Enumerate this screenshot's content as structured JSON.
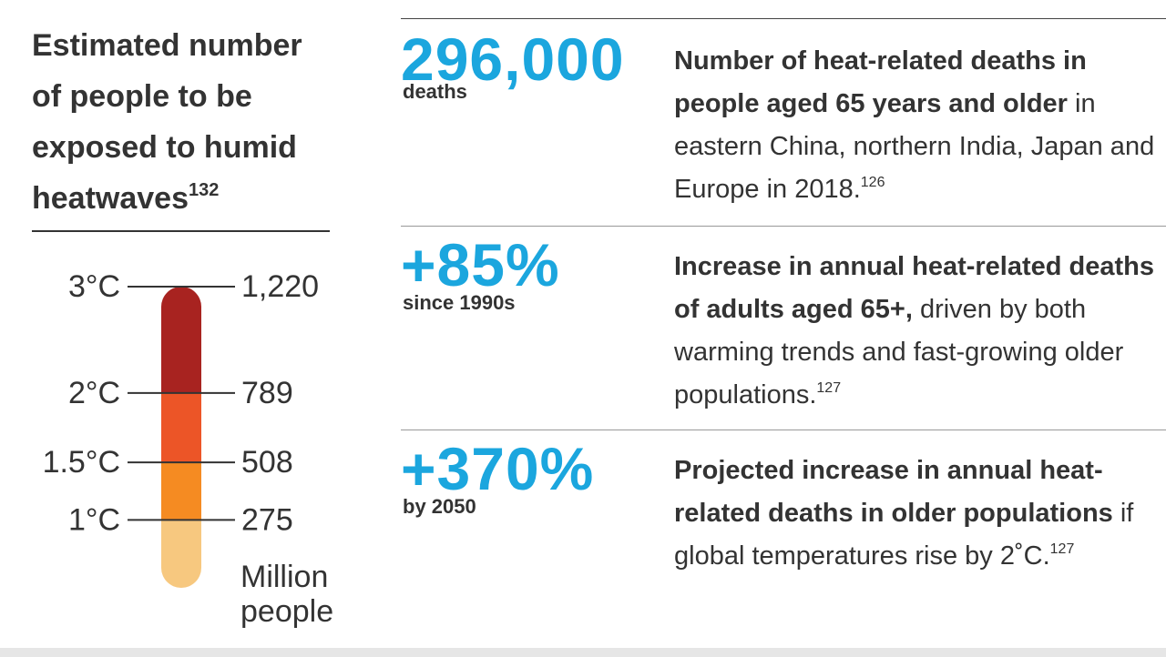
{
  "chart_data": {
    "type": "thermometer",
    "title": "Estimated number of people to be exposed to humid heatwaves",
    "title_ref": "132",
    "unit": "Million people",
    "categories": [
      "3°C",
      "2°C",
      "1.5°C",
      "1°C"
    ],
    "values": [
      1220,
      789,
      508,
      275
    ],
    "value_labels": [
      "1,220",
      "789",
      "508",
      "275"
    ],
    "colors": [
      "#a82320",
      "#ec5527",
      "#f58b22",
      "#f7c87f"
    ],
    "ylim": [
      0,
      1220
    ]
  },
  "stats": [
    {
      "figure": "296,000",
      "caption": "deaths",
      "bold": "Number of heat-related deaths in people aged 65 years and older",
      "text": " in eastern China, northern India, Japan and Europe in 2018.",
      "ref": "126"
    },
    {
      "figure": "+85%",
      "caption": "since 1990s",
      "bold": "Increase in annual heat-related deaths of adults aged 65+,",
      "text": " driven by both warming trends and fast-growing older populations.",
      "ref": "127"
    },
    {
      "figure": "+370%",
      "caption": "by 2050",
      "bold": "Projected increase in annual heat-related deaths in older populations",
      "text": " if global temperatures rise by 2˚C.",
      "ref": "127"
    }
  ]
}
